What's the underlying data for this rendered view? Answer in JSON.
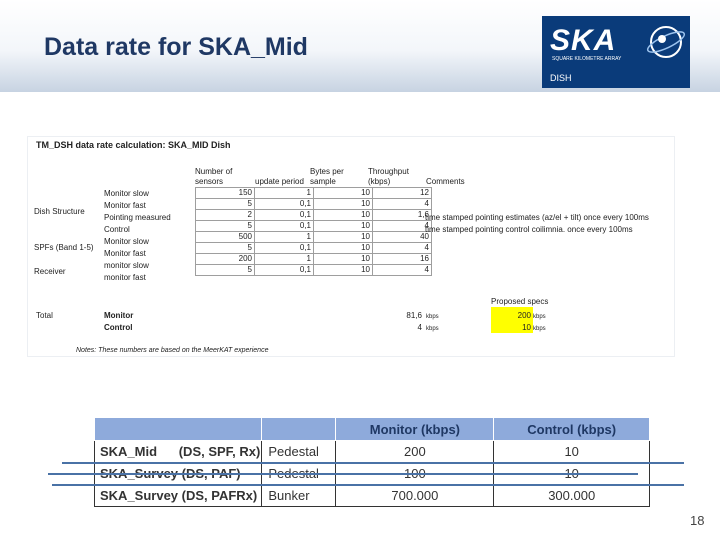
{
  "slide": {
    "title": "Data rate for SKA_Mid",
    "page_number": "18"
  },
  "logo": {
    "text": "SKA",
    "subtitle": "SQUARE KILOMETRE ARRAY",
    "label": "DISH"
  },
  "spreadsheet": {
    "title": "TM_DSH data rate calculation: SKA_MID Dish",
    "headers": {
      "sensors_1": "Number of",
      "sensors_2": "sensors",
      "update": "update period",
      "bytes_1": "Bytes per",
      "bytes_2": "sample",
      "throughput_1": "Throughput",
      "throughput_2": "(kbps)",
      "comments": "Comments"
    },
    "groups": {
      "dish_structure": "Dish Structure",
      "spfs": "SPFs (Band 1-5)",
      "receiver": "Receiver"
    },
    "rows": [
      {
        "label": "Monitor slow",
        "sensors": "150",
        "update": "1",
        "bytes": "10",
        "throughput": "12",
        "comment": ""
      },
      {
        "label": "Monitor fast",
        "sensors": "5",
        "update": "0,1",
        "bytes": "10",
        "throughput": "4",
        "comment": ""
      },
      {
        "label": "Pointing measured",
        "sensors": "2",
        "update": "0,1",
        "bytes": "10",
        "throughput": "1,6",
        "comment": "time stamped pointing estimates (az/el + tilt) once every 100ms"
      },
      {
        "label": "Control",
        "sensors": "5",
        "update": "0,1",
        "bytes": "10",
        "throughput": "4",
        "comment": "time stamped pointing control coilimnia. once every 100ms"
      },
      {
        "label": "Monitor slow",
        "sensors": "500",
        "update": "1",
        "bytes": "10",
        "throughput": "40",
        "comment": ""
      },
      {
        "label": "Monitor fast",
        "sensors": "5",
        "update": "0,1",
        "bytes": "10",
        "throughput": "4",
        "comment": ""
      },
      {
        "label": "monitor slow",
        "sensors": "200",
        "update": "1",
        "bytes": "10",
        "throughput": "16",
        "comment": ""
      },
      {
        "label": "monitor fast",
        "sensors": "5",
        "update": "0,1",
        "bytes": "10",
        "throughput": "4",
        "comment": ""
      }
    ],
    "proposed_label": "Proposed specs",
    "total_label": "Total",
    "total_rows": [
      {
        "label": "Monitor",
        "value": "81,6",
        "unit": "kbps",
        "proposed": "200",
        "proposed_unit": "kbps"
      },
      {
        "label": "Control",
        "value": "4",
        "unit": "kbps",
        "proposed": "10",
        "proposed_unit": "kbps"
      }
    ],
    "note": "Notes: These numbers are based on the MeerKAT experience",
    "highlight_color": "#ffff00"
  },
  "comparison": {
    "headers": [
      "",
      "",
      "Monitor (kbps)",
      "Control (kbps)"
    ],
    "rows": [
      {
        "name": "SKA_Mid      (DS, SPF, Rx)",
        "type": "Pedestal",
        "monitor": "200",
        "control": "10"
      },
      {
        "name": "SKA_Survey (DS, PAF)",
        "type": "Pedestal",
        "monitor": "100",
        "control": "10"
      },
      {
        "name": "SKA_Survey (DS, PAFRx)",
        "type": "Bunker",
        "monitor": "700.000",
        "control": "300.000"
      }
    ],
    "header_color": "#8eaadb"
  }
}
